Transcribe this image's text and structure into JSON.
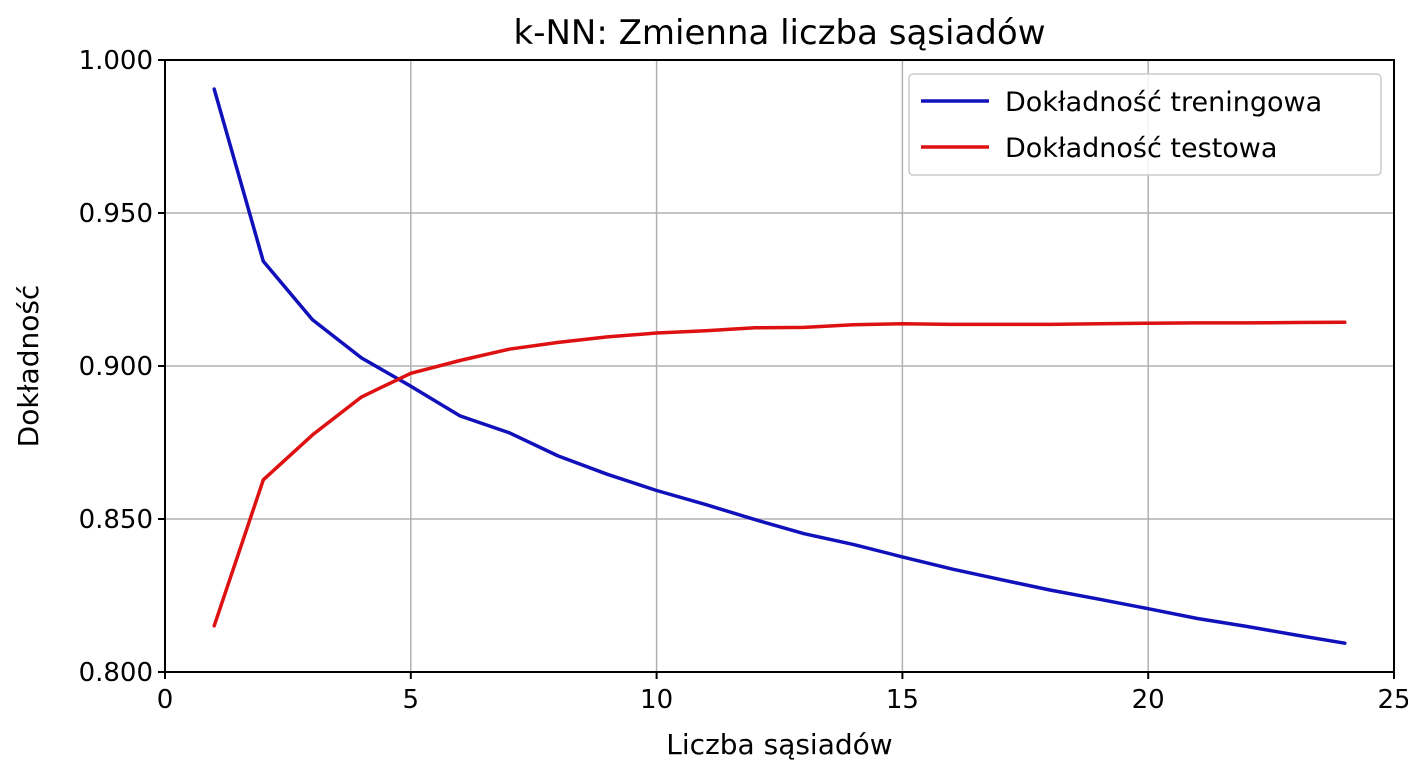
{
  "chart_data": {
    "type": "line",
    "title": "k-NN: Zmienna liczba sąsiadów",
    "xlabel": "Liczba sąsiadów",
    "ylabel": "Dokładność",
    "xlim": [
      0,
      25
    ],
    "ylim": [
      0.8,
      1.0
    ],
    "xticks": [
      0,
      5,
      10,
      15,
      20,
      25
    ],
    "yticks": [
      0.8,
      0.85,
      0.9,
      0.95,
      1.0
    ],
    "ytick_labels": [
      "0.800",
      "0.850",
      "0.900",
      "0.950",
      "1.000"
    ],
    "grid": true,
    "legend_position": "top-right",
    "x": [
      1,
      2,
      3,
      4,
      5,
      6,
      7,
      8,
      9,
      10,
      11,
      12,
      13,
      14,
      15,
      16,
      17,
      18,
      19,
      20,
      21,
      22,
      23,
      24
    ],
    "series": [
      {
        "name": "Dokładność treningowa",
        "color": "#1111bb",
        "values": [
          0.9905,
          0.9342,
          0.9151,
          0.9026,
          0.8934,
          0.8837,
          0.8782,
          0.8706,
          0.8646,
          0.8593,
          0.8547,
          0.8498,
          0.8452,
          0.8417,
          0.8376,
          0.8337,
          0.8302,
          0.8268,
          0.8238,
          0.8207,
          0.8175,
          0.8149,
          0.8121,
          0.8094
        ]
      },
      {
        "name": "Dokładność testowa",
        "color": "#dd1111",
        "values": [
          0.8151,
          0.8628,
          0.8775,
          0.8899,
          0.8976,
          0.9018,
          0.9055,
          0.9077,
          0.9095,
          0.9108,
          0.9115,
          0.9125,
          0.9126,
          0.9135,
          0.9138,
          0.9136,
          0.9136,
          0.9136,
          0.9138,
          0.914,
          0.9141,
          0.9141,
          0.9142,
          0.9143
        ]
      }
    ]
  }
}
